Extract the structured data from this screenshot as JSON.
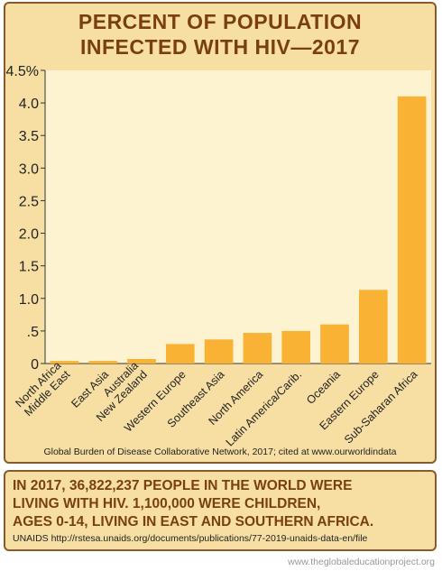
{
  "header": {
    "title_line1": "PERCENT OF POPULATION",
    "title_line2": "INFECTED WITH HIV—2017"
  },
  "chart_data": {
    "type": "bar",
    "title": "PERCENT OF POPULATION INFECTED WITH HIV—2017",
    "categories": [
      "North Africa Middle East",
      "East Asia",
      "Australia New Zealand",
      "Western Europe",
      "Southeast Asia",
      "North America",
      "Latin America/Carib.",
      "Oceania",
      "Eastern Europe",
      "Sub-Saharan Africa"
    ],
    "category_lines": [
      [
        "North Africa",
        "Middle East"
      ],
      [
        "East Asia"
      ],
      [
        "Australia",
        "New Zealand"
      ],
      [
        "Western Europe"
      ],
      [
        "Southeast Asia"
      ],
      [
        "North America"
      ],
      [
        "Latin America/Carib."
      ],
      [
        "Oceania"
      ],
      [
        "Eastern Europe"
      ],
      [
        "Sub-Saharan Africa"
      ]
    ],
    "values": [
      0.04,
      0.04,
      0.07,
      0.3,
      0.37,
      0.47,
      0.5,
      0.6,
      1.13,
      4.1
    ],
    "ylim": [
      0,
      4.5
    ],
    "yticks": [
      {
        "value": 0,
        "label": "0"
      },
      {
        "value": 0.5,
        "label": ".5"
      },
      {
        "value": 1.0,
        "label": "1.0"
      },
      {
        "value": 1.5,
        "label": "1.5"
      },
      {
        "value": 2.0,
        "label": "2.0"
      },
      {
        "value": 2.5,
        "label": "2.5"
      },
      {
        "value": 3.0,
        "label": "3.0"
      },
      {
        "value": 3.5,
        "label": "3.5"
      },
      {
        "value": 4.0,
        "label": "4.0"
      },
      {
        "value": 4.5,
        "label": "4.5%"
      }
    ],
    "grid": false,
    "bar_color": "#f9b233",
    "plot_bg": "#fdf3d0"
  },
  "source": "Global Burden of Disease Collaborative Network, 2017; cited at www.ourworldindata",
  "note": {
    "line1": "IN 2017, 36,822,237 PEOPLE IN THE WORLD WERE",
    "line2": "LIVING WITH HIV. 1,100,000 WERE CHILDREN,",
    "line3": "AGES 0-14, LIVING IN EAST AND SOUTHERN AFRICA.",
    "source": "UNAIDS http://rstesa.unaids.org/documents/publications/77-2019-unaids-data-en/file"
  },
  "credit": "www.theglobaleducationproject.org"
}
